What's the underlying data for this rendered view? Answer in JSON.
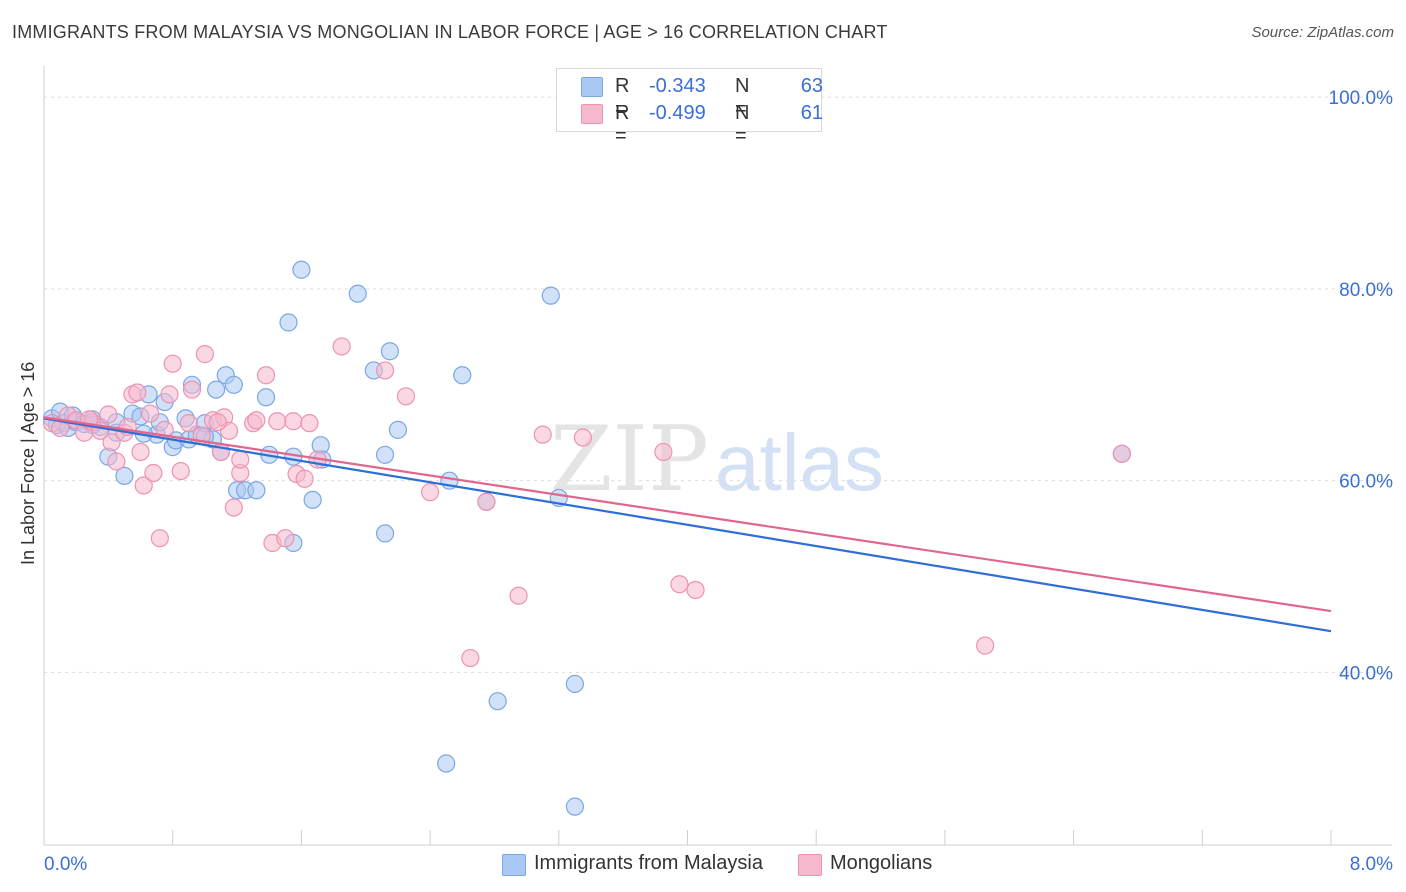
{
  "title": "IMMIGRANTS FROM MALAYSIA VS MONGOLIAN IN LABOR FORCE | AGE > 16 CORRELATION CHART",
  "source": "Source: ZipAtlas.com",
  "watermark": {
    "zip": "ZIP",
    "atlas": "atlas"
  },
  "legend": {
    "malaysia": {
      "r_label": "R =",
      "r_value": "-0.343",
      "n_label": "N =",
      "n_value": "63"
    },
    "mongolians": {
      "r_label": "R =",
      "r_value": "-0.499",
      "n_label": "N =",
      "n_value": "61"
    }
  },
  "colors": {
    "malaysia_fill": "#a9c8f3",
    "malaysia_stroke": "#7aa7e6",
    "malaysia_line": "#2e6fd4",
    "mongolians_fill": "#f6b8cc",
    "mongolians_stroke": "#ee92b0",
    "mongolians_line": "#e0668e",
    "tick_label": "#3a6fd6",
    "grid": "#dcdcdc"
  },
  "chart_data": {
    "type": "scatter",
    "title": "IMMIGRANTS FROM MALAYSIA VS MONGOLIAN IN LABOR FORCE | AGE > 16 CORRELATION CHART",
    "xlabel": "",
    "ylabel": "In Labor Force | Age > 16",
    "xlim": [
      0,
      8
    ],
    "ylim": [
      22,
      102
    ],
    "x_tick_labels": [
      "0.0%",
      "8.0%"
    ],
    "y_tick_labels": [
      "40.0%",
      "60.0%",
      "80.0%",
      "100.0%"
    ],
    "y_ticks": [
      40,
      60,
      80,
      100
    ],
    "x_tick_marks": [
      0,
      0.8,
      1.6,
      2.4,
      3.2,
      4.0,
      4.8,
      5.6,
      6.4,
      7.2,
      8.0
    ],
    "grid": true,
    "legend_position": "top-center",
    "series": [
      {
        "name": "Immigrants from Malaysia",
        "trend": {
          "x0": 0,
          "y0": 66.5,
          "x1": 8,
          "y1": 44.3
        },
        "points": [
          [
            0.05,
            66.5
          ],
          [
            0.08,
            65.8
          ],
          [
            0.1,
            67.2
          ],
          [
            0.12,
            66.0
          ],
          [
            0.15,
            65.5
          ],
          [
            0.18,
            66.8
          ],
          [
            0.2,
            66.1
          ],
          [
            0.25,
            65.9
          ],
          [
            0.3,
            66.4
          ],
          [
            0.35,
            65.6
          ],
          [
            0.4,
            62.5
          ],
          [
            0.45,
            65.0
          ],
          [
            0.5,
            60.5
          ],
          [
            0.55,
            67.0
          ],
          [
            0.6,
            66.7
          ],
          [
            0.65,
            69.0
          ],
          [
            0.7,
            64.8
          ],
          [
            0.72,
            66.1
          ],
          [
            0.75,
            68.2
          ],
          [
            0.8,
            63.5
          ],
          [
            0.82,
            64.2
          ],
          [
            0.88,
            66.5
          ],
          [
            0.9,
            64.3
          ],
          [
            0.92,
            70.0
          ],
          [
            0.95,
            64.8
          ],
          [
            1.0,
            66.0
          ],
          [
            1.05,
            64.3
          ],
          [
            1.07,
            69.5
          ],
          [
            1.1,
            63.0
          ],
          [
            1.13,
            71.0
          ],
          [
            1.18,
            70.0
          ],
          [
            1.2,
            59.0
          ],
          [
            1.25,
            59.0
          ],
          [
            1.32,
            59.0
          ],
          [
            1.38,
            68.7
          ],
          [
            1.4,
            62.7
          ],
          [
            1.52,
            76.5
          ],
          [
            1.55,
            62.5
          ],
          [
            1.6,
            82.0
          ],
          [
            1.67,
            58.0
          ],
          [
            1.72,
            63.7
          ],
          [
            1.55,
            53.5
          ],
          [
            1.95,
            79.5
          ],
          [
            2.05,
            71.5
          ],
          [
            2.15,
            73.5
          ],
          [
            2.12,
            62.7
          ],
          [
            2.12,
            54.5
          ],
          [
            2.2,
            65.3
          ],
          [
            2.5,
            30.5
          ],
          [
            2.52,
            60.0
          ],
          [
            2.6,
            71.0
          ],
          [
            2.75,
            57.8
          ],
          [
            2.82,
            37.0
          ],
          [
            3.15,
            79.3
          ],
          [
            3.2,
            58.2
          ],
          [
            3.3,
            26.0
          ],
          [
            3.3,
            38.8
          ],
          [
            6.7,
            62.8
          ],
          [
            1.73,
            62.2
          ],
          [
            0.3,
            65.8
          ],
          [
            0.62,
            64.9
          ],
          [
            0.45,
            66.1
          ],
          [
            1.0,
            64.6
          ]
        ]
      },
      {
        "name": "Mongolians",
        "trend": {
          "x0": 0,
          "y0": 66.6,
          "x1": 8,
          "y1": 46.4
        },
        "points": [
          [
            0.05,
            66.0
          ],
          [
            0.1,
            65.5
          ],
          [
            0.15,
            66.8
          ],
          [
            0.2,
            66.3
          ],
          [
            0.25,
            65.0
          ],
          [
            0.3,
            66.1
          ],
          [
            0.35,
            65.2
          ],
          [
            0.4,
            66.9
          ],
          [
            0.42,
            64.0
          ],
          [
            0.45,
            62.0
          ],
          [
            0.5,
            65.0
          ],
          [
            0.55,
            69.0
          ],
          [
            0.58,
            69.2
          ],
          [
            0.6,
            63.0
          ],
          [
            0.62,
            59.5
          ],
          [
            0.66,
            67.0
          ],
          [
            0.68,
            60.8
          ],
          [
            0.72,
            54.0
          ],
          [
            0.75,
            65.3
          ],
          [
            0.78,
            69.0
          ],
          [
            0.8,
            72.2
          ],
          [
            0.85,
            61.0
          ],
          [
            0.9,
            66.0
          ],
          [
            0.92,
            69.5
          ],
          [
            0.98,
            64.7
          ],
          [
            1.0,
            73.2
          ],
          [
            1.05,
            66.3
          ],
          [
            1.1,
            63.0
          ],
          [
            1.12,
            66.6
          ],
          [
            1.15,
            65.2
          ],
          [
            1.18,
            57.2
          ],
          [
            1.22,
            60.8
          ],
          [
            1.22,
            62.2
          ],
          [
            1.3,
            66.0
          ],
          [
            1.32,
            66.3
          ],
          [
            1.38,
            71.0
          ],
          [
            1.42,
            53.5
          ],
          [
            1.45,
            66.2
          ],
          [
            1.5,
            54.0
          ],
          [
            1.55,
            66.2
          ],
          [
            1.57,
            60.7
          ],
          [
            1.62,
            60.2
          ],
          [
            1.65,
            66.0
          ],
          [
            1.7,
            62.2
          ],
          [
            1.85,
            74.0
          ],
          [
            2.12,
            71.5
          ],
          [
            2.25,
            68.8
          ],
          [
            2.4,
            58.8
          ],
          [
            2.65,
            41.5
          ],
          [
            2.75,
            57.8
          ],
          [
            2.95,
            48.0
          ],
          [
            3.1,
            64.8
          ],
          [
            3.35,
            64.5
          ],
          [
            3.85,
            63.0
          ],
          [
            3.95,
            49.2
          ],
          [
            4.05,
            48.6
          ],
          [
            5.85,
            42.8
          ],
          [
            6.7,
            62.8
          ],
          [
            0.28,
            66.4
          ],
          [
            0.52,
            65.6
          ],
          [
            1.08,
            66.1
          ]
        ]
      }
    ]
  }
}
